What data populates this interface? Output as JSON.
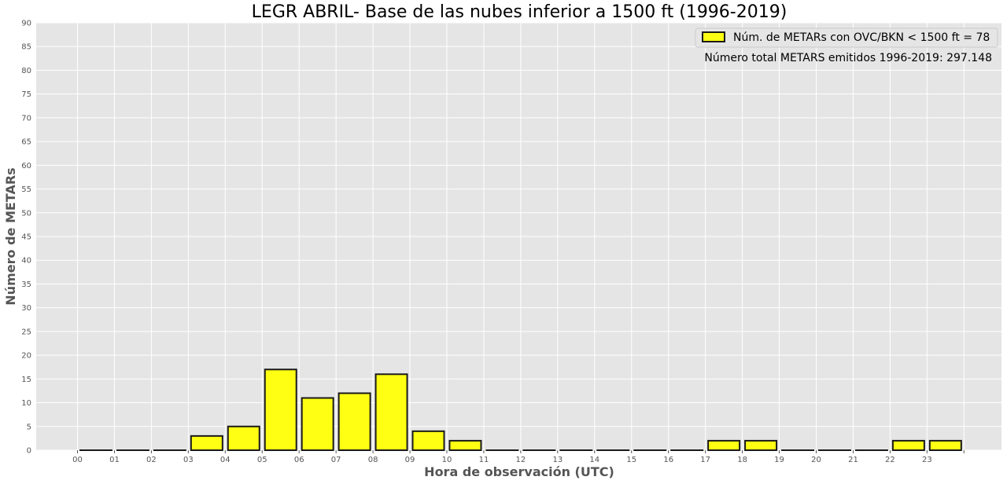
{
  "chart_data": {
    "type": "bar",
    "title": "LEGR ABRIL- Base de las nubes inferior a 1500 ft (1996-2019)",
    "xlabel": "Hora de observación (UTC)",
    "ylabel": "Número de METARs",
    "categories": [
      "00",
      "01",
      "02",
      "03",
      "04",
      "05",
      "06",
      "07",
      "08",
      "09",
      "10",
      "11",
      "12",
      "13",
      "14",
      "15",
      "16",
      "17",
      "18",
      "19",
      "20",
      "21",
      "22",
      "23"
    ],
    "series": [
      {
        "name": "Núm. de METARs con OVC/BKN < 1500 ft = 78",
        "values": [
          0,
          0,
          0,
          3,
          5,
          17,
          11,
          12,
          16,
          4,
          2,
          0,
          0,
          0,
          0,
          0,
          0,
          2,
          2,
          0,
          0,
          0,
          2,
          2
        ]
      }
    ],
    "ylim": [
      0,
      90
    ],
    "yticks": [
      0,
      5,
      10,
      15,
      20,
      25,
      30,
      35,
      40,
      45,
      50,
      55,
      60,
      65,
      70,
      75,
      80,
      85,
      90
    ],
    "grid": true,
    "legend_position": "top-right",
    "annotation": "Número total METARS emitidos 1996-2019: 297.148",
    "colors": {
      "bar_fill": "#ffff14",
      "bar_edge": "#1a1a1a",
      "plot_background": "#e5e5e5",
      "grid": "#ffffff",
      "text": "#555555"
    }
  }
}
